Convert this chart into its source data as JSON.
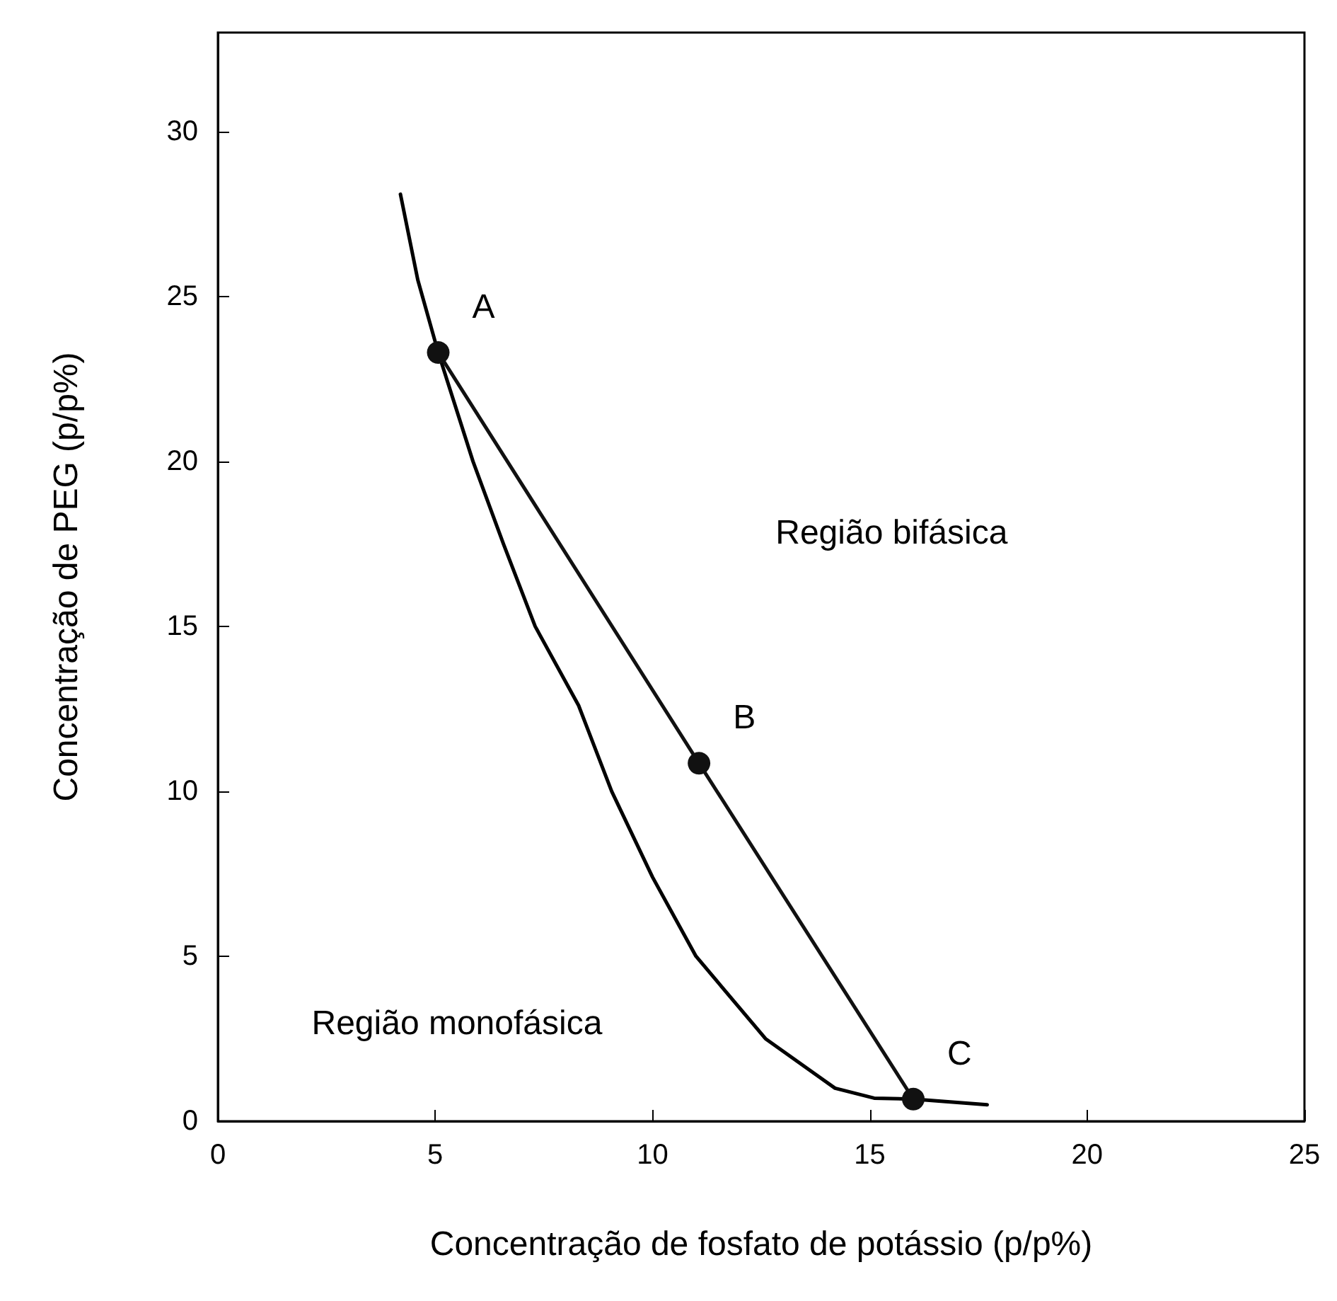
{
  "chart_data": {
    "type": "line",
    "xlabel": "Concentração de fosfato de potássio (p/p%)",
    "ylabel": "Concentração de PEG (p/p%)",
    "xlim": [
      0,
      25
    ],
    "xticks": [
      0,
      5,
      10,
      15,
      20,
      25
    ],
    "ylim": [
      0,
      33
    ],
    "yticks": [
      0,
      5,
      10,
      15,
      20,
      25,
      30
    ],
    "grid": false,
    "marker": "circle",
    "line_style": "solid",
    "series": [
      {
        "color": "#000000",
        "marker": "none",
        "x": [
          4.2,
          4.6,
          5.07,
          5.87,
          6.57,
          7.3,
          8.3,
          9.06,
          10.0,
          11.0,
          12.6,
          14.2,
          15.1,
          16.0,
          17.7
        ],
        "values": [
          28.1,
          25.5,
          23.3,
          20.0,
          17.5,
          15.0,
          12.6,
          10.0,
          7.4,
          5.0,
          2.5,
          1.0,
          0.7,
          0.67,
          0.5
        ]
      },
      {
        "color": "#111111",
        "x": [
          5.07,
          11.07,
          16.0
        ],
        "values": [
          23.3,
          10.85,
          0.67
        ],
        "value_labels": [
          "A",
          "B",
          "C"
        ]
      }
    ],
    "annotations": [
      "Região bifásica",
      "Região monofásica"
    ]
  }
}
